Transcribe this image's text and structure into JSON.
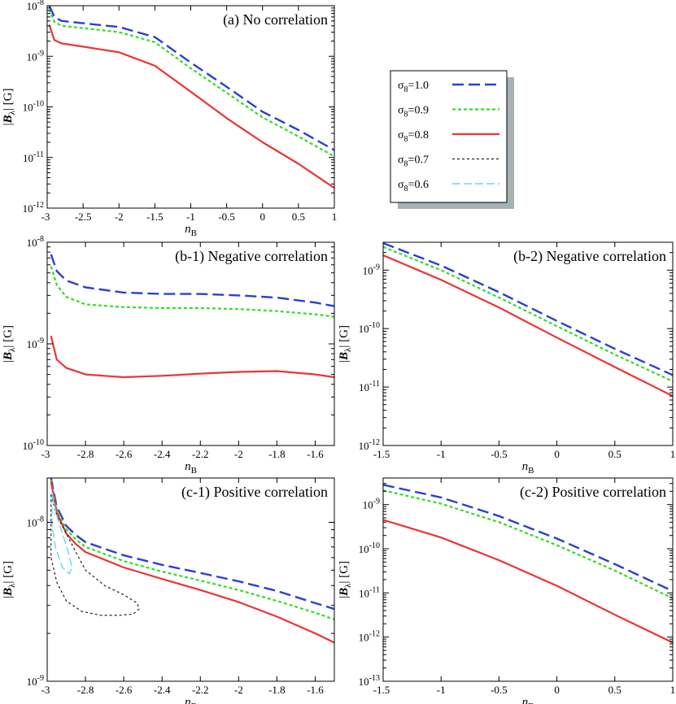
{
  "chart_data": [
    {
      "id": "a",
      "type": "line",
      "title": "(a) No correlation",
      "xlabel": "n_B",
      "ylabel": "|B_λ| [G]",
      "xscale": "linear",
      "yscale": "log",
      "xlim": [
        -3,
        1
      ],
      "ylim": [
        1e-12,
        1e-08
      ],
      "xticks": [
        -3,
        -2.5,
        -2,
        -1.5,
        -1,
        -0.5,
        0,
        0.5,
        1
      ],
      "xtick_labels": [
        "-3",
        "-2.5",
        "-2",
        "-1.5",
        "-1",
        "-0.5",
        "0",
        "0.5",
        "1"
      ],
      "yticks": [
        -12,
        -11,
        -10,
        -9,
        -8
      ],
      "legend_position": "outside-right",
      "series": [
        {
          "name": "σ8=1.0",
          "x": [
            -2.97,
            -2.9,
            -2.8,
            -2.5,
            -2.0,
            -1.5,
            -1.0,
            -0.5,
            0.0,
            0.5,
            1.0
          ],
          "y": [
            1e-08,
            6e-09,
            5e-09,
            4.5e-09,
            3.8e-09,
            2.4e-09,
            7.5e-10,
            2.5e-10,
            8e-11,
            3.5e-11,
            1.4e-11
          ]
        },
        {
          "name": "σ8=0.9",
          "x": [
            -2.97,
            -2.9,
            -2.8,
            -2.5,
            -2.0,
            -1.5,
            -1.0,
            -0.5,
            0.0,
            0.5,
            1.0
          ],
          "y": [
            8.5e-09,
            4.8e-09,
            4e-09,
            3.6e-09,
            3e-09,
            1.9e-09,
            5.8e-10,
            1.9e-10,
            6.2e-11,
            2.6e-11,
            1.05e-11
          ]
        },
        {
          "name": "σ8=0.8",
          "x": [
            -2.97,
            -2.9,
            -2.8,
            -2.5,
            -2.0,
            -1.5,
            -1.0,
            -0.5,
            0.0,
            0.5,
            1.0
          ],
          "y": [
            4.2e-09,
            2.1e-09,
            1.8e-09,
            1.55e-09,
            1.2e-09,
            6.5e-10,
            2e-10,
            6e-11,
            2e-11,
            7.5e-12,
            2.5e-12
          ]
        }
      ]
    },
    {
      "id": "b1",
      "type": "line",
      "title": "(b-1) Negative correlation",
      "xlabel": "n_B",
      "ylabel": "|B_λ| [G]",
      "xscale": "linear",
      "yscale": "log",
      "xlim": [
        -3,
        -1.5
      ],
      "ylim": [
        1e-10,
        1e-08
      ],
      "xticks": [
        -3,
        -2.8,
        -2.6,
        -2.4,
        -2.2,
        -2,
        -1.8,
        -1.6
      ],
      "xtick_labels": [
        "-3",
        "-2.8",
        "-2.6",
        "-2.4",
        "-2.2",
        "-2",
        "-1.8",
        "-1.6"
      ],
      "yticks": [
        -10,
        -9,
        -8
      ],
      "series": [
        {
          "name": "σ8=1.0",
          "x": [
            -2.98,
            -2.95,
            -2.9,
            -2.8,
            -2.6,
            -2.4,
            -2.2,
            -2.0,
            -1.8,
            -1.6,
            -1.5
          ],
          "y": [
            7.6e-09,
            5.2e-09,
            4.2e-09,
            3.6e-09,
            3.2e-09,
            3.1e-09,
            3.1e-09,
            3e-09,
            2.85e-09,
            2.55e-09,
            2.35e-09
          ]
        },
        {
          "name": "σ8=0.9",
          "x": [
            -2.98,
            -2.95,
            -2.9,
            -2.8,
            -2.6,
            -2.4,
            -2.2,
            -2.0,
            -1.8,
            -1.6,
            -1.5
          ],
          "y": [
            5.8e-09,
            3.8e-09,
            2.9e-09,
            2.45e-09,
            2.3e-09,
            2.25e-09,
            2.25e-09,
            2.2e-09,
            2.1e-09,
            1.95e-09,
            1.85e-09
          ]
        },
        {
          "name": "σ8=0.8",
          "x": [
            -2.98,
            -2.95,
            -2.9,
            -2.8,
            -2.6,
            -2.4,
            -2.2,
            -2.0,
            -1.8,
            -1.6,
            -1.5
          ],
          "y": [
            1.2e-09,
            7e-10,
            5.8e-10,
            5e-10,
            4.7e-10,
            4.85e-10,
            5.1e-10,
            5.3e-10,
            5.4e-10,
            5e-10,
            4.7e-10
          ]
        }
      ]
    },
    {
      "id": "b2",
      "type": "line",
      "title": "(b-2) Negative correlation",
      "xlabel": "n_B",
      "ylabel": "|B_λ| [G]",
      "xscale": "linear",
      "yscale": "log",
      "xlim": [
        -1.5,
        1
      ],
      "ylim": [
        1e-12,
        3e-09
      ],
      "xticks": [
        -1.5,
        -1,
        -0.5,
        0,
        0.5,
        1
      ],
      "xtick_labels": [
        "-1.5",
        "-1",
        "-0.5",
        "0",
        "0.5",
        "1"
      ],
      "yticks": [
        -12,
        -11,
        -10,
        -9
      ],
      "series": [
        {
          "name": "σ8=1.0",
          "x": [
            -1.5,
            -1.0,
            -0.5,
            0.0,
            0.5,
            1.0
          ],
          "y": [
            2.9e-09,
            1.2e-09,
            4.2e-10,
            1.35e-10,
            4.5e-11,
            1.6e-11
          ]
        },
        {
          "name": "σ8=0.9",
          "x": [
            -1.5,
            -1.0,
            -0.5,
            0.0,
            0.5,
            1.0
          ],
          "y": [
            2.5e-09,
            1e-09,
            3.4e-10,
            1.1e-10,
            3.6e-11,
            1.25e-11
          ]
        },
        {
          "name": "σ8=0.8",
          "x": [
            -1.5,
            -1.0,
            -0.5,
            0.0,
            0.5,
            1.0
          ],
          "y": [
            1.8e-09,
            6.8e-10,
            2.3e-10,
            7e-11,
            2.2e-11,
            7e-12
          ]
        }
      ]
    },
    {
      "id": "c1",
      "type": "line",
      "title": "(c-1) Positive correlation",
      "xlabel": "n_B",
      "ylabel": "|B_λ| [G]",
      "xscale": "linear",
      "yscale": "log",
      "xlim": [
        -3,
        -1.5
      ],
      "ylim": [
        1e-09,
        1.9e-08
      ],
      "xticks": [
        -3,
        -2.8,
        -2.6,
        -2.4,
        -2.2,
        -2,
        -1.8,
        -1.6
      ],
      "xtick_labels": [
        "-3",
        "-2.8",
        "-2.6",
        "-2.4",
        "-2.2",
        "-2",
        "-1.8",
        "-1.6"
      ],
      "yticks": [
        -9,
        -8
      ],
      "series": [
        {
          "name": "σ8=1.0",
          "x": [
            -2.98,
            -2.95,
            -2.9,
            -2.85,
            -2.8,
            -2.6,
            -2.4,
            -2.2,
            -2.0,
            -1.8,
            -1.6,
            -1.5
          ],
          "y": [
            1.9e-08,
            1.25e-08,
            9.5e-09,
            8.3e-09,
            7.5e-09,
            6.2e-09,
            5.4e-09,
            4.8e-09,
            4.25e-09,
            3.7e-09,
            3.1e-09,
            2.85e-09
          ]
        },
        {
          "name": "σ8=0.9",
          "x": [
            -2.98,
            -2.95,
            -2.9,
            -2.85,
            -2.8,
            -2.6,
            -2.4,
            -2.2,
            -2.0,
            -1.8,
            -1.6,
            -1.5
          ],
          "y": [
            1.85e-08,
            1.2e-08,
            9e-09,
            7.8e-09,
            7e-09,
            5.7e-09,
            4.9e-09,
            4.3e-09,
            3.75e-09,
            3.2e-09,
            2.7e-09,
            2.45e-09
          ]
        },
        {
          "name": "σ8=0.8",
          "x": [
            -2.98,
            -2.95,
            -2.9,
            -2.85,
            -2.8,
            -2.6,
            -2.4,
            -2.2,
            -2.0,
            -1.8,
            -1.6,
            -1.5
          ],
          "y": [
            1.8e-08,
            1.15e-08,
            8.5e-09,
            7.3e-09,
            6.5e-09,
            5.2e-09,
            4.4e-09,
            3.75e-09,
            3.15e-09,
            2.55e-09,
            2e-09,
            1.75e-09
          ]
        },
        {
          "name": "σ8=0.7",
          "closed": true,
          "x": [
            -2.98,
            -2.95,
            -2.9,
            -2.85,
            -2.8,
            -2.7,
            -2.6,
            -2.53,
            -2.52,
            -2.55,
            -2.62,
            -2.72,
            -2.82,
            -2.9,
            -2.95,
            -2.98
          ],
          "y": [
            1.5e-08,
            1.1e-08,
            8.5e-09,
            6.5e-09,
            5e-09,
            4e-09,
            3.5e-09,
            3.1e-09,
            2.85e-09,
            2.65e-09,
            2.6e-09,
            2.6e-09,
            2.75e-09,
            3.2e-09,
            4.2e-09,
            6e-09
          ]
        },
        {
          "name": "σ8=0.6",
          "closed": true,
          "x": [
            -2.975,
            -2.95,
            -2.92,
            -2.89,
            -2.87,
            -2.885,
            -2.92,
            -2.955,
            -2.975
          ],
          "y": [
            1.55e-08,
            1.1e-08,
            8.5e-09,
            6.5e-09,
            5.2e-09,
            4.75e-09,
            5.2e-09,
            6.8e-09,
            9.5e-09
          ]
        }
      ]
    },
    {
      "id": "c2",
      "type": "line",
      "title": "(c-2) Positive correlation",
      "xlabel": "n_B",
      "ylabel": "|B_λ| [G]",
      "xscale": "linear",
      "yscale": "log",
      "xlim": [
        -1.5,
        1
      ],
      "ylim": [
        1e-13,
        4e-09
      ],
      "xticks": [
        -1.5,
        -1,
        -0.5,
        0,
        0.5,
        1
      ],
      "xtick_labels": [
        "-1.5",
        "-1",
        "-0.5",
        "0",
        "0.5",
        "1"
      ],
      "yticks": [
        -13,
        -12,
        -11,
        -10,
        -9
      ],
      "series": [
        {
          "name": "σ8=1.0",
          "x": [
            -1.5,
            -1.0,
            -0.5,
            0.0,
            0.5,
            1.0
          ],
          "y": [
            2.8e-09,
            1.45e-09,
            5.5e-10,
            1.7e-10,
            4.5e-11,
            1.1e-11
          ]
        },
        {
          "name": "σ8=0.9",
          "x": [
            -1.5,
            -1.0,
            -0.5,
            0.0,
            0.5,
            1.0
          ],
          "y": [
            2.1e-09,
            1.05e-09,
            4e-10,
            1.2e-10,
            3.2e-11,
            7.5e-12
          ]
        },
        {
          "name": "σ8=0.8",
          "x": [
            -1.5,
            -1.0,
            -0.5,
            0.0,
            0.5,
            1.0
          ],
          "y": [
            4.5e-10,
            1.8e-10,
            5.5e-11,
            1.45e-11,
            3.2e-12,
            7.5e-13
          ]
        }
      ]
    }
  ],
  "legend": {
    "entries": [
      {
        "sub": "8",
        "value": "=1.0",
        "color": "#2a3fd6",
        "dash": "14,6",
        "width": 2.4
      },
      {
        "sub": "8",
        "value": "=0.9",
        "color": "#33dd22",
        "dash": "4,3",
        "width": 2.2
      },
      {
        "sub": "8",
        "value": "=0.8",
        "color": "#ee3333",
        "dash": "",
        "width": 2.2
      },
      {
        "sub": "8",
        "value": "=0.7",
        "color": "#222222",
        "dash": "3,3",
        "width": 1.2
      },
      {
        "sub": "8",
        "value": "=0.6",
        "color": "#66d8ee",
        "dash": "10,4",
        "width": 1.4
      }
    ]
  },
  "labels": {
    "sigma": "σ",
    "ylabel_b": "B",
    "ylabel_lambda": "λ",
    "ylabel_unit": "[G]",
    "xlabel_n": "n",
    "xlabel_sub": "B",
    "tick_base": "10"
  }
}
